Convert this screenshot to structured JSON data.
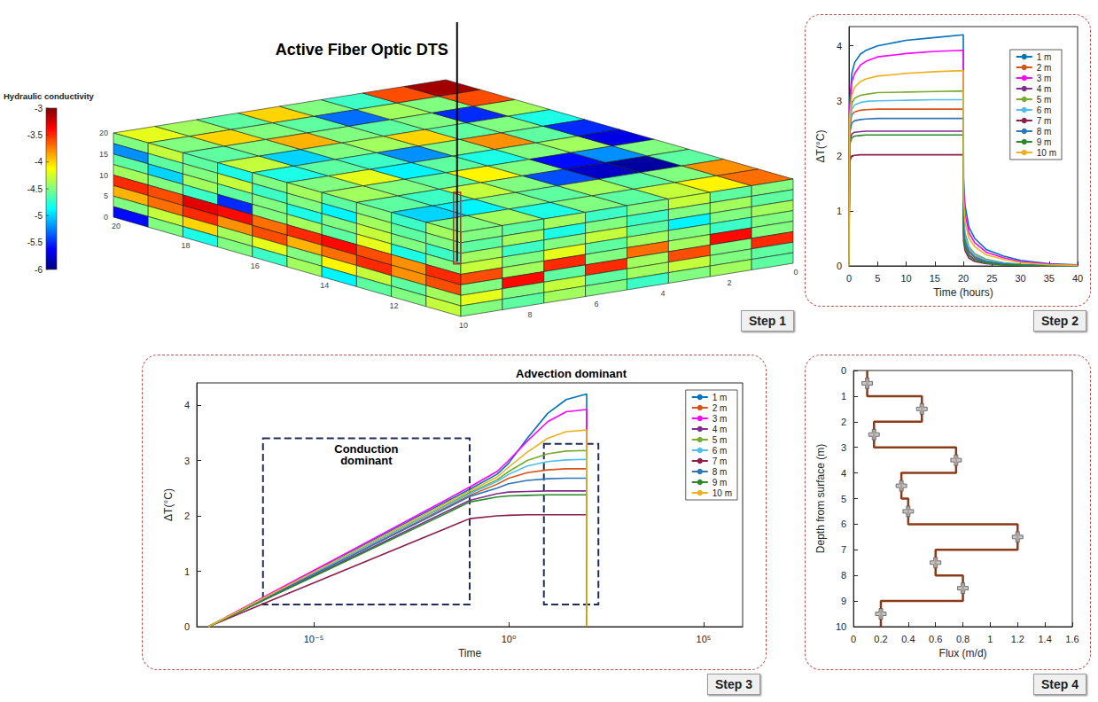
{
  "panel_labels": [
    "Step 1",
    "Step 2",
    "Step 3",
    "Step 4"
  ],
  "block_model": {
    "title": "Active Fiber Optic DTS",
    "colorbar": {
      "title": "Hydraulic conductivity",
      "range": [
        -6,
        -3
      ],
      "ticks": [
        -3,
        -3.5,
        -4,
        -4.5,
        -5,
        -5.5,
        -6
      ]
    },
    "top": [
      [
        -4.2,
        -4.5,
        -4.6,
        -4.3,
        -4.8,
        -4.5,
        -4.4,
        -4.6,
        -5.0,
        -4.5
      ],
      [
        -4.4,
        -4.0,
        -4.5,
        -5.0,
        -4.6,
        -4.2,
        -4.5,
        -4.7,
        -4.9,
        -4.4
      ],
      [
        -4.6,
        -4.5,
        -3.9,
        -4.5,
        -4.7,
        -4.9,
        -4.6,
        -4.3,
        -4.5,
        -4.8
      ],
      [
        -4.0,
        -4.6,
        -4.5,
        -4.4,
        -5.2,
        -4.6,
        -4.1,
        -4.5,
        -4.6,
        -4.5
      ],
      [
        -4.5,
        -5.3,
        -4.6,
        -4.0,
        -4.5,
        -4.8,
        -4.5,
        -5.4,
        -4.4,
        -4.6
      ],
      [
        -4.7,
        -4.4,
        -4.5,
        -4.6,
        -3.8,
        -4.5,
        -5.6,
        -5.8,
        -4.6,
        -4.3
      ],
      [
        -3.6,
        -4.5,
        -5.5,
        -4.5,
        -4.6,
        -4.4,
        -5.2,
        -5.9,
        -4.5,
        -4.1
      ],
      [
        -3.1,
        -3.6,
        -4.4,
        -4.8,
        -5.5,
        -5.7,
        -4.5,
        -4.6,
        -3.8,
        -3.7
      ]
    ],
    "front": [
      [
        -4.5,
        -4.3,
        -4.6,
        -4.8,
        -4.5,
        -4.4,
        -4.6,
        -4.5,
        -4.7,
        -4.4
      ],
      [
        -5.2,
        -4.6,
        -4.5,
        -4.3,
        -4.7,
        -4.5,
        -4.9,
        -4.4,
        -4.6,
        -4.5
      ],
      [
        -4.6,
        -5.0,
        -4.4,
        -4.6,
        -4.5,
        -4.8,
        -4.5,
        -4.3,
        -4.5,
        -4.7
      ],
      [
        -4.4,
        -4.5,
        -4.7,
        -5.5,
        -4.5,
        -4.4,
        -4.6,
        -4.2,
        -4.8,
        -4.5
      ],
      [
        -3.5,
        -3.6,
        -3.3,
        -3.4,
        -3.7,
        -3.5,
        -3.4,
        -3.6,
        -3.8,
        -3.5
      ],
      [
        -3.9,
        -3.7,
        -3.5,
        -3.8,
        -3.6,
        -3.9,
        -3.7,
        -3.5,
        -3.8,
        -3.6
      ],
      [
        -4.5,
        -4.3,
        -4.0,
        -4.4,
        -4.2,
        -4.5,
        -4.1,
        -4.3,
        -4.6,
        -4.4
      ],
      [
        -5.6,
        -4.5,
        -4.8,
        -4.5,
        -4.7,
        -4.4,
        -4.9,
        -4.6,
        -4.5,
        -4.3
      ]
    ],
    "side": [
      [
        -4.5,
        -4.6,
        -4.4,
        -4.7,
        -4.5,
        -4.3,
        -4.6,
        -4.5
      ],
      [
        -4.6,
        -4.4,
        -4.8,
        -4.5,
        -4.7,
        -4.5,
        -4.4,
        -4.6
      ],
      [
        -4.4,
        -4.7,
        -4.5,
        -4.3,
        -4.6,
        -4.9,
        -4.5,
        -4.4
      ],
      [
        -4.3,
        -4.5,
        -4.2,
        -4.6,
        -4.4,
        -4.5,
        -4.7,
        -4.5
      ],
      [
        -3.6,
        -4.4,
        -3.5,
        -4.5,
        -3.7,
        -4.4,
        -3.4,
        -4.5
      ],
      [
        -4.5,
        -3.4,
        -4.6,
        -3.5,
        -4.4,
        -3.6,
        -4.5,
        -3.5
      ],
      [
        -4.2,
        -4.5,
        -4.3,
        -4.6,
        -4.4,
        -4.3,
        -4.5,
        -4.6
      ],
      [
        -4.5,
        -4.6,
        -4.4,
        -4.5,
        -4.7,
        -4.5,
        -4.4,
        -4.6
      ]
    ],
    "base_ticks": [
      20,
      18,
      16,
      14,
      12,
      10,
      8,
      6,
      4,
      2,
      0
    ],
    "left_ticks": [
      0,
      5,
      10,
      15,
      20
    ]
  },
  "chart_data": [
    {
      "type": "line",
      "x_label": "Time (hours)",
      "y_label": "ΔT(°C)",
      "x": [
        0,
        0.1,
        0.5,
        1,
        2,
        3,
        5,
        10,
        15,
        20,
        20.05,
        20.3,
        21,
        22,
        24,
        27,
        30,
        35,
        40
      ],
      "series": [
        {
          "name": "1 m",
          "color": "#0072bd",
          "values": [
            0,
            2.9,
            3.5,
            3.7,
            3.85,
            3.92,
            4.0,
            4.1,
            4.15,
            4.2,
            1.6,
            1.1,
            0.7,
            0.5,
            0.3,
            0.18,
            0.1,
            0.04,
            0.02
          ]
        },
        {
          "name": "2 m",
          "color": "#d95319",
          "values": [
            0,
            2.5,
            2.75,
            2.8,
            2.83,
            2.84,
            2.85,
            2.85,
            2.85,
            2.85,
            0.75,
            0.48,
            0.28,
            0.17,
            0.09,
            0.04,
            0.02,
            0.01,
            0
          ]
        },
        {
          "name": "3 m",
          "color": "#ff00ff",
          "values": [
            0,
            2.8,
            3.35,
            3.5,
            3.65,
            3.72,
            3.8,
            3.86,
            3.9,
            3.92,
            1.4,
            0.95,
            0.6,
            0.42,
            0.25,
            0.15,
            0.08,
            0.03,
            0.01
          ]
        },
        {
          "name": "4 m",
          "color": "#7e2f8e",
          "values": [
            0,
            2.25,
            2.4,
            2.43,
            2.44,
            2.45,
            2.45,
            2.45,
            2.45,
            2.45,
            0.6,
            0.38,
            0.2,
            0.12,
            0.06,
            0.03,
            0.01,
            0,
            0
          ]
        },
        {
          "name": "5 m",
          "color": "#77ac30",
          "values": [
            0,
            2.6,
            2.95,
            3.05,
            3.1,
            3.12,
            3.15,
            3.16,
            3.17,
            3.18,
            0.9,
            0.6,
            0.35,
            0.22,
            0.12,
            0.06,
            0.03,
            0.01,
            0
          ]
        },
        {
          "name": "6 m",
          "color": "#4dbeee",
          "values": [
            0,
            2.55,
            2.85,
            2.93,
            2.97,
            2.99,
            3.0,
            3.01,
            3.02,
            3.02,
            0.85,
            0.55,
            0.32,
            0.2,
            0.1,
            0.05,
            0.02,
            0.01,
            0
          ]
        },
        {
          "name": "7 m",
          "color": "#8c1d4f",
          "values": [
            0,
            1.9,
            2.0,
            2.01,
            2.02,
            2.02,
            2.02,
            2.02,
            2.02,
            2.02,
            0.45,
            0.28,
            0.14,
            0.08,
            0.04,
            0.02,
            0.01,
            0,
            0
          ]
        },
        {
          "name": "8 m",
          "color": "#2e75b6",
          "values": [
            0,
            2.4,
            2.6,
            2.64,
            2.66,
            2.67,
            2.68,
            2.68,
            2.68,
            2.68,
            0.7,
            0.45,
            0.25,
            0.15,
            0.08,
            0.04,
            0.02,
            0.01,
            0
          ]
        },
        {
          "name": "9 m",
          "color": "#2a8a2a",
          "values": [
            0,
            2.2,
            2.33,
            2.36,
            2.37,
            2.38,
            2.38,
            2.38,
            2.38,
            2.38,
            0.55,
            0.35,
            0.18,
            0.11,
            0.05,
            0.02,
            0.01,
            0,
            0
          ]
        },
        {
          "name": "10 m",
          "color": "#edb120",
          "values": [
            0,
            2.7,
            3.1,
            3.25,
            3.35,
            3.4,
            3.45,
            3.5,
            3.53,
            3.55,
            1.2,
            0.8,
            0.5,
            0.35,
            0.2,
            0.12,
            0.06,
            0.02,
            0.01
          ]
        }
      ],
      "xlim": [
        0,
        40
      ],
      "xticks": [
        0,
        5,
        10,
        15,
        20,
        25,
        30,
        35,
        40
      ],
      "ylim": [
        0,
        4.35
      ],
      "yticks": [
        0,
        1,
        2,
        3,
        4
      ],
      "grid": false,
      "legend": "upper right"
    },
    {
      "type": "line",
      "log": "x",
      "x_label": "Time",
      "y_label": "ΔT(°C)",
      "x": [
        2e-08,
        1e-06,
        0.0001,
        0.01,
        0.1,
        0.5,
        1,
        3,
        10,
        30,
        100,
        100.5
      ],
      "series": [
        {
          "name": "1 m",
          "color": "#0072bd",
          "values": [
            0,
            0.63,
            1.37,
            2.11,
            2.48,
            2.75,
            2.95,
            3.4,
            3.85,
            4.1,
            4.2,
            0
          ]
        },
        {
          "name": "2 m",
          "color": "#d95319",
          "values": [
            0,
            0.6,
            1.3,
            2.01,
            2.37,
            2.57,
            2.68,
            2.78,
            2.83,
            2.85,
            2.85,
            0
          ]
        },
        {
          "name": "3 m",
          "color": "#ff00ff",
          "values": [
            0,
            0.64,
            1.39,
            2.14,
            2.52,
            2.8,
            3.0,
            3.35,
            3.7,
            3.88,
            3.92,
            0
          ]
        },
        {
          "name": "4 m",
          "color": "#7e2f8e",
          "values": [
            0,
            0.58,
            1.26,
            1.94,
            2.28,
            2.4,
            2.43,
            2.44,
            2.45,
            2.45,
            2.45,
            0
          ]
        },
        {
          "name": "5 m",
          "color": "#77ac30",
          "values": [
            0,
            0.61,
            1.33,
            2.05,
            2.42,
            2.65,
            2.8,
            3.0,
            3.12,
            3.17,
            3.18,
            0
          ]
        },
        {
          "name": "6 m",
          "color": "#4dbeee",
          "values": [
            0,
            0.61,
            1.32,
            2.04,
            2.4,
            2.62,
            2.75,
            2.9,
            2.98,
            3.01,
            3.02,
            0
          ]
        },
        {
          "name": "7 m",
          "color": "#8c1d4f",
          "values": [
            0,
            0.5,
            1.08,
            1.66,
            1.95,
            2.0,
            2.01,
            2.02,
            2.02,
            2.02,
            2.02,
            0
          ]
        },
        {
          "name": "8 m",
          "color": "#2e75b6",
          "values": [
            0,
            0.6,
            1.29,
            1.99,
            2.35,
            2.5,
            2.58,
            2.64,
            2.67,
            2.68,
            2.68,
            0
          ]
        },
        {
          "name": "9 m",
          "color": "#2a8a2a",
          "values": [
            0,
            0.57,
            1.24,
            1.91,
            2.25,
            2.34,
            2.36,
            2.37,
            2.38,
            2.38,
            2.38,
            0
          ]
        },
        {
          "name": "10 m",
          "color": "#edb120",
          "values": [
            0,
            0.62,
            1.35,
            2.08,
            2.45,
            2.7,
            2.88,
            3.15,
            3.4,
            3.52,
            3.55,
            0
          ]
        }
      ],
      "xlim": [
        1e-08,
        1000000
      ],
      "xticks": [
        {
          "value": 1e-05,
          "label": "10⁻⁵"
        },
        {
          "value": 1,
          "label": "10⁰"
        },
        {
          "value": 100000,
          "label": "10⁵"
        }
      ],
      "ylim": [
        0,
        4.4
      ],
      "yticks": [
        0,
        1,
        2,
        3,
        4
      ],
      "annotations": [
        {
          "text": "Conduction dominant",
          "x": [
            5e-07,
            0.1
          ],
          "y": [
            0.4,
            3.4
          ]
        },
        {
          "text": "Advection dominant",
          "x": [
            8,
            200
          ],
          "y": [
            0.4,
            3.3
          ]
        }
      ],
      "grid": false,
      "legend": "upper right"
    },
    {
      "type": "step",
      "x_label": "Flux (m/d)",
      "y_label": "Depth from surface (m)",
      "values": [
        0.1,
        0.5,
        0.15,
        0.75,
        0.35,
        0.4,
        1.2,
        0.6,
        0.8,
        0.2
      ],
      "depths": [
        0.5,
        1.5,
        2.5,
        3.5,
        4.5,
        5.5,
        6.5,
        7.5,
        8.5,
        9.5
      ],
      "layers": [
        [
          0,
          1
        ],
        [
          1,
          2
        ],
        [
          2,
          3
        ],
        [
          3,
          4
        ],
        [
          4,
          5
        ],
        [
          5,
          6
        ],
        [
          6,
          7
        ],
        [
          7,
          8
        ],
        [
          8,
          9
        ],
        [
          9,
          10
        ]
      ],
      "color": "#8b3a1a",
      "marker": "plus",
      "xlim": [
        0,
        1.6
      ],
      "xticks": [
        0,
        0.2,
        0.4,
        0.6,
        0.8,
        1,
        1.2,
        1.4,
        1.6
      ],
      "ylim": [
        0,
        10
      ],
      "yticks": [
        0,
        1,
        2,
        3,
        4,
        5,
        6,
        7,
        8,
        9,
        10
      ],
      "grid": false
    }
  ]
}
